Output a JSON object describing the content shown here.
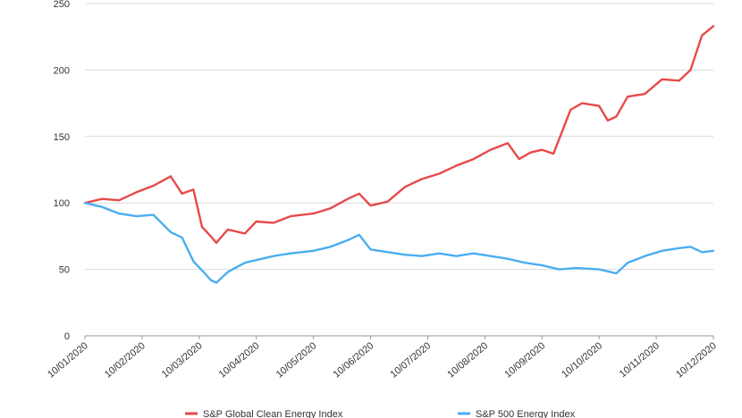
{
  "chart_data": {
    "type": "line",
    "title": "",
    "xlabel": "",
    "ylabel": "",
    "ylim": [
      0,
      250
    ],
    "yticks": [
      0,
      50,
      100,
      150,
      200,
      250
    ],
    "grid": "horizontal",
    "legend_position": "bottom",
    "x_tick_labels": [
      "10/01/2020",
      "10/02/2020",
      "10/03/2020",
      "10/04/2020",
      "10/05/2020",
      "10/06/2020",
      "10/07/2020",
      "10/08/2020",
      "10/09/2020",
      "10/10/2020",
      "10/11/2020",
      "10/12/2020"
    ],
    "x_month_index": [
      0,
      1,
      2,
      3,
      4,
      5,
      6,
      7,
      8,
      9,
      10,
      11
    ],
    "series": [
      {
        "name": "S&P Global Clean Energy Index",
        "color": "#e84a4a",
        "x": [
          0,
          0.3,
          0.6,
          0.9,
          1.2,
          1.5,
          1.7,
          1.9,
          2.05,
          2.2,
          2.3,
          2.5,
          2.8,
          3.0,
          3.3,
          3.6,
          4.0,
          4.3,
          4.6,
          4.8,
          5.0,
          5.3,
          5.6,
          5.9,
          6.2,
          6.5,
          6.8,
          7.1,
          7.4,
          7.6,
          7.8,
          8.0,
          8.2,
          8.5,
          8.7,
          9.0,
          9.15,
          9.3,
          9.5,
          9.8,
          10.1,
          10.4,
          10.6,
          10.8,
          11.0
        ],
        "values": [
          100,
          103,
          102,
          108,
          113,
          120,
          107,
          110,
          82,
          75,
          70,
          80,
          77,
          86,
          85,
          90,
          92,
          96,
          103,
          107,
          98,
          101,
          112,
          118,
          122,
          128,
          133,
          140,
          145,
          133,
          138,
          140,
          137,
          170,
          175,
          173,
          162,
          165,
          180,
          182,
          193,
          192,
          200,
          226,
          233
        ]
      },
      {
        "name": "S&P 500 Energy Index",
        "color": "#4aaef0",
        "x": [
          0,
          0.3,
          0.6,
          0.9,
          1.2,
          1.5,
          1.7,
          1.9,
          2.1,
          2.2,
          2.3,
          2.5,
          2.8,
          3.0,
          3.3,
          3.6,
          4.0,
          4.3,
          4.6,
          4.8,
          5.0,
          5.3,
          5.6,
          5.9,
          6.2,
          6.5,
          6.8,
          7.1,
          7.4,
          7.7,
          8.0,
          8.3,
          8.6,
          9.0,
          9.3,
          9.5,
          9.8,
          10.1,
          10.4,
          10.6,
          10.8,
          11.0
        ],
        "values": [
          100,
          97,
          92,
          90,
          91,
          78,
          74,
          56,
          47,
          42,
          40,
          48,
          55,
          57,
          60,
          62,
          64,
          67,
          72,
          76,
          65,
          63,
          61,
          60,
          62,
          60,
          62,
          60,
          58,
          55,
          53,
          50,
          51,
          50,
          47,
          55,
          60,
          64,
          66,
          67,
          63,
          64
        ]
      }
    ]
  }
}
